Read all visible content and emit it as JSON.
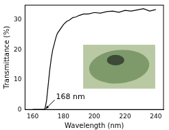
{
  "chart_data": {
    "type": "line",
    "x_label": "Wavelength (nm)",
    "y_label": "Transmittance (%)",
    "x": [
      160,
      162,
      164,
      166,
      167,
      168,
      169,
      170,
      171,
      172,
      173,
      174,
      175,
      176,
      178,
      180,
      182,
      184,
      186,
      188,
      190,
      193,
      196,
      200,
      204,
      208,
      212,
      216,
      220,
      224,
      228,
      232,
      236,
      240
    ],
    "values": [
      0,
      0,
      0,
      0,
      0,
      0.3,
      3,
      8,
      13,
      17,
      20,
      22,
      24,
      25.5,
      27,
      28.5,
      29.5,
      30,
      30.8,
      31,
      31.5,
      32,
      32,
      32.5,
      32.3,
      32.8,
      33,
      32.6,
      33.2,
      33,
      33.4,
      33.8,
      33,
      33.5
    ],
    "color": "#000000",
    "xlim": [
      155,
      245
    ],
    "xticks": [
      160,
      180,
      200,
      220,
      240
    ],
    "ylim": [
      0,
      35
    ],
    "yticks": [
      0,
      10,
      20,
      30
    ],
    "grid": false,
    "annotations": [
      {
        "text": "168 nm",
        "x": 168,
        "y": 0
      }
    ]
  }
}
